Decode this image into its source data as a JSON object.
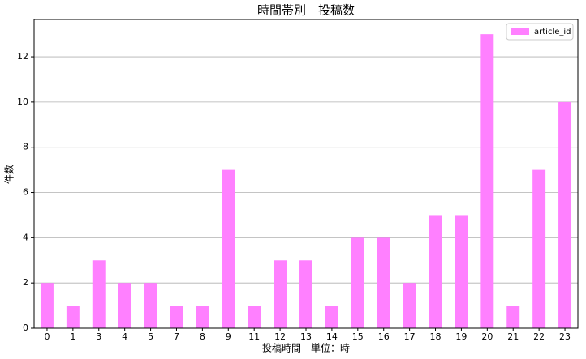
{
  "chart_data": {
    "type": "bar",
    "title": "時間帯別　投稿数",
    "x_label": "投稿時間　単位：時",
    "y_label": "件数",
    "categories": [
      "0",
      "1",
      "3",
      "4",
      "5",
      "7",
      "8",
      "9",
      "11",
      "12",
      "13",
      "14",
      "15",
      "16",
      "17",
      "18",
      "19",
      "20",
      "21",
      "22",
      "23"
    ],
    "series": [
      {
        "name": "article_id",
        "color": "#ff80ff",
        "values": [
          2,
          1,
          3,
          2,
          2,
          1,
          1,
          7,
          1,
          3,
          3,
          1,
          4,
          4,
          2,
          5,
          5,
          13,
          1,
          7,
          10
        ]
      }
    ],
    "ylim": [
      0,
      13.65
    ],
    "yticks": [
      0,
      2,
      4,
      6,
      8,
      10,
      12
    ],
    "grid": true,
    "legend": "upper right"
  }
}
